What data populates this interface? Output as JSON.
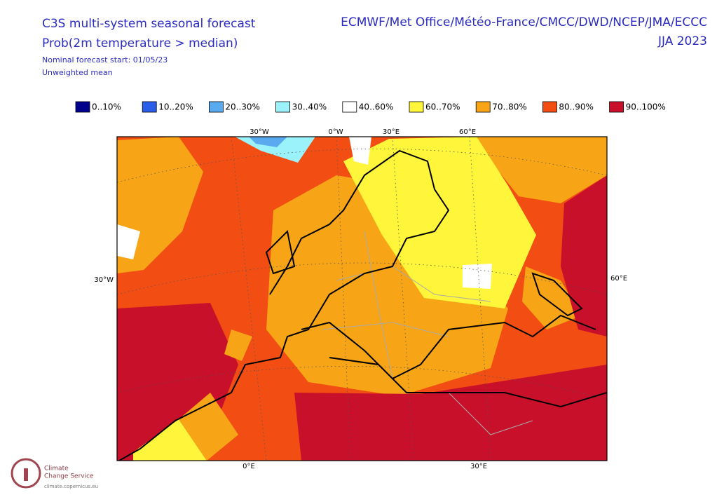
{
  "header": {
    "title_lines": [
      "C3S multi-system seasonal forecast",
      "Prob(2m temperature > median)"
    ],
    "info_lines": [
      "Nominal forecast start: 01/05/23",
      "Unweighted mean"
    ],
    "right_lines": [
      "ECMWF/Met Office/Météo-France/CMCC/DWD/NCEP/JMA/ECCC",
      "JJA 2023"
    ]
  },
  "legend": [
    {
      "label": "0..10%",
      "color": "#00008b"
    },
    {
      "label": "10..20%",
      "color": "#2a5ee8"
    },
    {
      "label": "20..30%",
      "color": "#5aaaf0"
    },
    {
      "label": "30..40%",
      "color": "#9cf2fa"
    },
    {
      "label": "40..60%",
      "color": "#ffffff"
    },
    {
      "label": "60..70%",
      "color": "#fff53a"
    },
    {
      "label": "70..80%",
      "color": "#f7a516"
    },
    {
      "label": "80..90%",
      "color": "#f24e14"
    },
    {
      "label": "90..100%",
      "color": "#c8102a"
    }
  ],
  "map": {
    "top_labels": [
      "30°W",
      "0°W",
      "30°E",
      "60°E"
    ],
    "left_label": "30°W",
    "right_label": "60°E",
    "bottom_labels": [
      "0°E",
      "30°E"
    ]
  },
  "logo": {
    "lines": [
      "Climate",
      "Change Service"
    ],
    "url": "climate.copernicus.eu"
  }
}
